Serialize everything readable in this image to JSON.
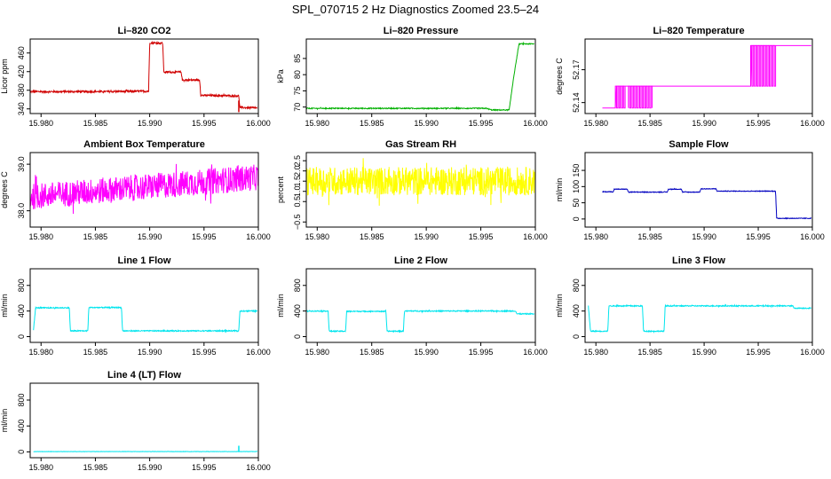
{
  "title": "SPL_070715  2 Hz Diagnostics Zoomed 23.5–24",
  "x_tick_labels": [
    "15.980",
    "15.985",
    "15.990",
    "15.995",
    "16.000"
  ],
  "chart_data": [
    {
      "type": "line",
      "title": "Li–820 CO2",
      "ylabel": "Licor ppm",
      "color": "#d00000",
      "xlim": [
        15.979,
        16.0
      ],
      "ylim": [
        330,
        490
      ],
      "yticks": [
        340,
        380,
        420,
        460
      ],
      "series": [
        {
          "x": [
            15.979,
            15.985,
            15.9899,
            15.99,
            15.9912,
            15.9913,
            15.9929,
            15.993,
            15.9946,
            15.9947,
            15.9982,
            15.9983,
            15.9999
          ],
          "y": [
            377,
            377,
            378,
            482,
            481,
            419,
            419,
            402,
            402,
            369,
            368,
            343,
            342
          ]
        }
      ],
      "noise": 2,
      "annotations": [
        {
          "x": 15.9982,
          "y_from": 333,
          "y_to": 358
        }
      ]
    },
    {
      "type": "line",
      "title": "Li–820 Pressure",
      "ylabel": "kPa",
      "color": "#00b000",
      "xlim": [
        15.979,
        16.0
      ],
      "ylim": [
        68,
        91
      ],
      "yticks": [
        70,
        75,
        80,
        85
      ],
      "series": [
        {
          "x": [
            15.979,
            15.9955,
            15.996,
            15.9976,
            15.998,
            15.9985,
            15.9999
          ],
          "y": [
            69.6,
            69.6,
            69.1,
            69.1,
            79.0,
            89.5,
            89.5
          ]
        }
      ],
      "noise": 0.15
    },
    {
      "type": "line",
      "title": "Li–820 Temperature",
      "ylabel": "degrees C",
      "color": "#ff00ff",
      "xlim": [
        15.979,
        16.0
      ],
      "ylim": [
        52.13,
        52.198
      ],
      "yticks": [
        52.14,
        52.17
      ],
      "ytick_labels": [
        "52.14",
        "52.17"
      ],
      "extra_ytick_labels": [
        "52.17"
      ],
      "series": [
        {
          "x": [
            15.9806,
            15.9818,
            15.9819,
            15.9943,
            15.9944,
            15.9999
          ],
          "y": [
            52.135,
            52.135,
            52.155,
            52.155,
            52.192,
            52.192
          ]
        }
      ],
      "toggle_bands": [
        {
          "from": 15.9818,
          "to": 15.9827,
          "low": 52.135,
          "high": 52.155
        },
        {
          "from": 15.983,
          "to": 15.9852,
          "low": 52.135,
          "high": 52.155
        },
        {
          "from": 15.9943,
          "to": 15.9966,
          "low": 52.155,
          "high": 52.192
        }
      ]
    },
    {
      "type": "line",
      "title": "Ambient Box Temperature",
      "ylabel": "degrees C",
      "color": "#ff00ff",
      "xlim": [
        15.979,
        16.0
      ],
      "ylim": [
        37.65,
        39.25
      ],
      "yticks": [
        38.0,
        39.0
      ],
      "ytick_labels": [
        "38.0",
        "39.0"
      ],
      "series": [
        {
          "x": [
            15.979,
            16.0
          ],
          "y": [
            38.3,
            38.72
          ]
        }
      ],
      "noise": 0.28
    },
    {
      "type": "line",
      "title": "Gas Stream RH",
      "ylabel": "percent",
      "color": "#ffff00",
      "xlim": [
        15.979,
        16.0
      ],
      "ylim": [
        -0.75,
        2.9
      ],
      "yticks": [
        -0.5,
        0.5,
        1.0,
        1.5,
        2.0,
        2.5
      ],
      "ytick_labels": [
        "−0.5",
        "0.5",
        "1.0",
        "1.5",
        "2.0",
        "2.5"
      ],
      "series": [
        {
          "x": [
            15.979,
            16.0
          ],
          "y": [
            1.5,
            1.5
          ]
        }
      ],
      "noise": 0.7
    },
    {
      "type": "line",
      "title": "Sample Flow",
      "ylabel": "ml/min",
      "color": "#0000c0",
      "xlim": [
        15.979,
        16.0
      ],
      "ylim": [
        -25,
        205
      ],
      "yticks": [
        0,
        50,
        100,
        150
      ],
      "series": [
        {
          "x": [
            15.9806,
            15.9816,
            15.9817,
            15.9829,
            15.983,
            15.9866,
            15.9867,
            15.9879,
            15.988,
            15.9896,
            15.9897,
            15.9911,
            15.9912,
            15.9966,
            15.9967,
            15.9999
          ],
          "y": [
            84,
            84,
            92,
            92,
            83,
            83,
            92,
            92,
            83,
            83,
            93,
            93,
            86,
            86,
            2,
            2
          ]
        }
      ],
      "noise": 1
    },
    {
      "type": "line",
      "title": "Line 1 Flow",
      "ylabel": "ml/min",
      "color": "#00e5ee",
      "xlim": [
        15.979,
        16.0
      ],
      "ylim": [
        -90,
        1060
      ],
      "yticks": [
        0,
        400,
        800
      ],
      "series": [
        {
          "x": [
            15.9793,
            15.9795,
            15.9826,
            15.9827,
            15.9843,
            15.9844,
            15.9874,
            15.9875,
            15.9982,
            15.9983,
            15.9999
          ],
          "y": [
            100,
            450,
            450,
            90,
            90,
            455,
            455,
            90,
            90,
            400,
            400
          ]
        }
      ],
      "noise": 8
    },
    {
      "type": "line",
      "title": "Line 2 Flow",
      "ylabel": "ml/min",
      "color": "#00e5ee",
      "xlim": [
        15.979,
        16.0
      ],
      "ylim": [
        -90,
        1060
      ],
      "yticks": [
        0,
        400,
        800
      ],
      "series": [
        {
          "x": [
            15.979,
            15.981,
            15.9811,
            15.9826,
            15.9827,
            15.9863,
            15.9864,
            15.9879,
            15.988,
            15.9982,
            15.9983,
            15.9999
          ],
          "y": [
            400,
            400,
            85,
            85,
            395,
            395,
            85,
            85,
            400,
            400,
            355,
            355
          ]
        }
      ],
      "noise": 8
    },
    {
      "type": "line",
      "title": "Line 3 Flow",
      "ylabel": "ml/min",
      "color": "#00e5ee",
      "xlim": [
        15.979,
        16.0
      ],
      "ylim": [
        -90,
        1060
      ],
      "yticks": [
        0,
        400,
        800
      ],
      "series": [
        {
          "x": [
            15.9793,
            15.9795,
            15.9811,
            15.9812,
            15.9843,
            15.9844,
            15.9863,
            15.9864,
            15.9982,
            15.9983,
            15.9999
          ],
          "y": [
            480,
            85,
            85,
            480,
            480,
            85,
            85,
            480,
            480,
            445,
            445
          ]
        }
      ],
      "noise": 8
    },
    {
      "type": "line",
      "title": "Line 4 (LT) Flow",
      "ylabel": "ml/min",
      "color": "#00e5ee",
      "xlim": [
        15.979,
        16.0
      ],
      "ylim": [
        -90,
        1060
      ],
      "yticks": [
        0,
        400,
        800
      ],
      "series": [
        {
          "x": [
            15.9793,
            15.9999
          ],
          "y": [
            5,
            5
          ]
        }
      ],
      "noise": 2,
      "spikes": [
        {
          "x": 15.9982,
          "y": 95
        }
      ]
    }
  ]
}
